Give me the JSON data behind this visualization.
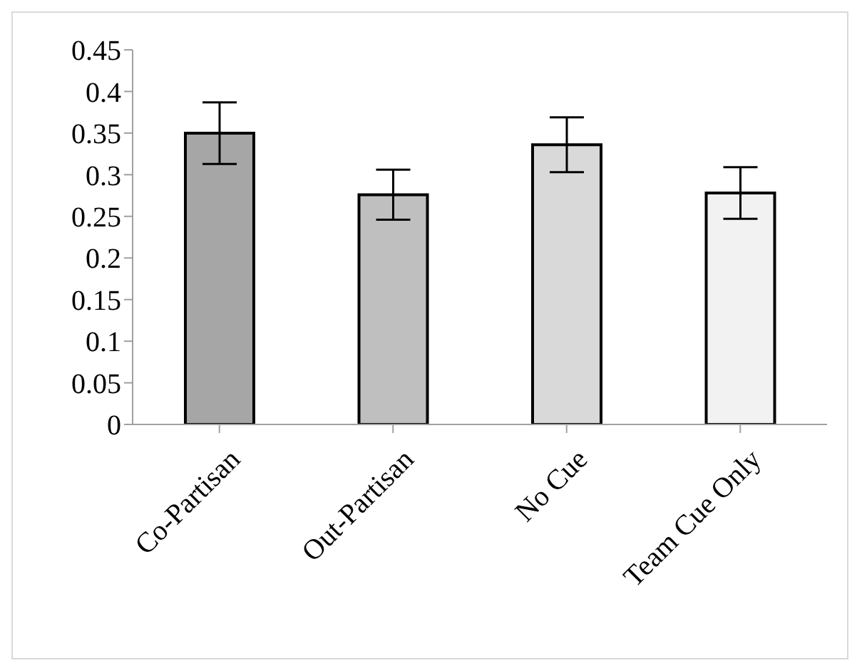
{
  "chart_data": {
    "type": "bar",
    "categories": [
      "Co-Partisan",
      "Out-Partisan",
      "No Cue",
      "Team Cue Only"
    ],
    "values": [
      0.35,
      0.276,
      0.336,
      0.278
    ],
    "errors": [
      0.037,
      0.03,
      0.033,
      0.031
    ],
    "colors": [
      "#a6a6a6",
      "#bfbfbf",
      "#d9d9d9",
      "#f2f2f2"
    ],
    "ylim": [
      0,
      0.45
    ],
    "yticks": [
      0,
      0.05,
      0.1,
      0.15,
      0.2,
      0.25,
      0.3,
      0.35,
      0.4,
      0.45
    ],
    "grid": false,
    "legend": false
  }
}
